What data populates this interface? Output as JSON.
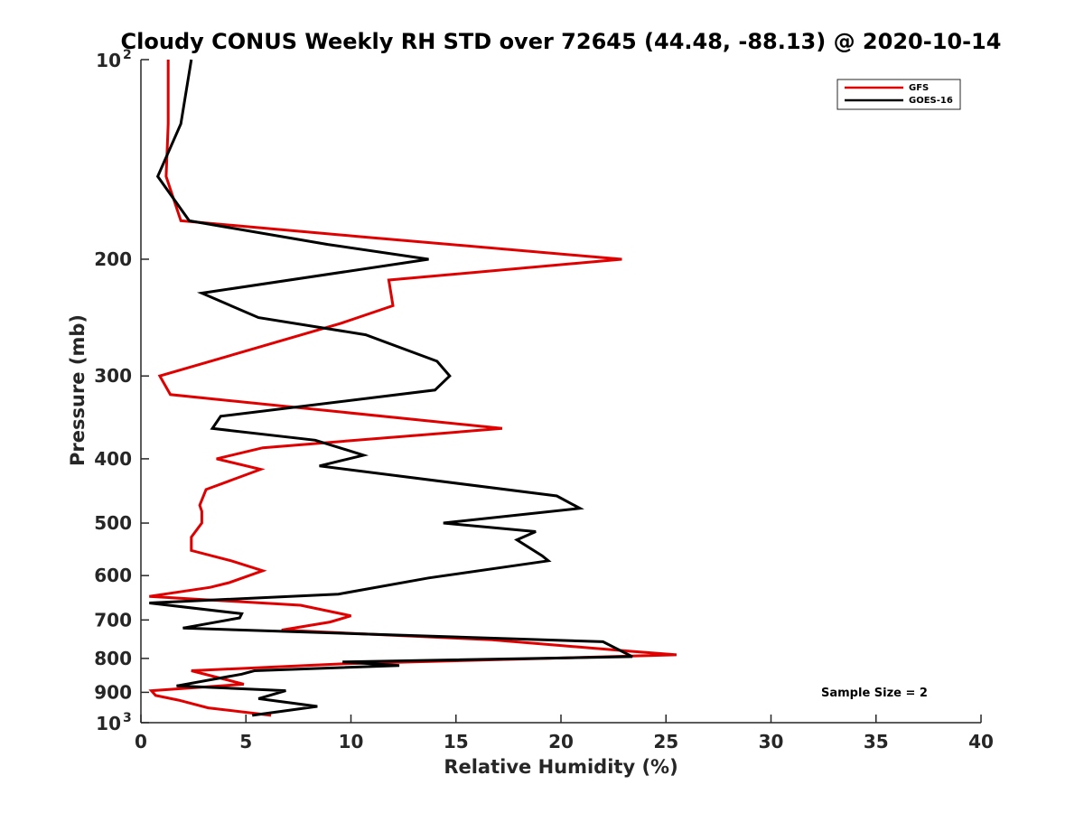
{
  "chart_data": {
    "type": "line",
    "title": "Cloudy CONUS Weekly RH STD over 72645 (44.48, -88.13) @ 2020-10-14",
    "xlabel": "Relative Humidity (%)",
    "ylabel": "Pressure (mb)",
    "xlim": [
      0,
      40
    ],
    "ylim": [
      100,
      1000
    ],
    "y_scale": "log",
    "y_reversed": true,
    "grid": false,
    "legend_position": "top-right",
    "x_ticks": [
      "0",
      "5",
      "10",
      "15",
      "20",
      "25",
      "30",
      "35",
      "40"
    ],
    "y_ticks": [
      {
        "value": 100,
        "base": "10",
        "exp": "2"
      },
      {
        "value": 200,
        "label": "200"
      },
      {
        "value": 300,
        "label": "300"
      },
      {
        "value": 400,
        "label": "400"
      },
      {
        "value": 500,
        "label": "500"
      },
      {
        "value": 600,
        "label": "600"
      },
      {
        "value": 700,
        "label": "700"
      },
      {
        "value": 800,
        "label": "800"
      },
      {
        "value": 900,
        "label": "900"
      },
      {
        "value": 1000,
        "base": "10",
        "exp": "3"
      }
    ],
    "annotation": "Sample Size = 2",
    "series": [
      {
        "name": "GFS",
        "color": "#e00000",
        "points": [
          [
            1.3,
            100
          ],
          [
            1.3,
            125
          ],
          [
            1.2,
            150
          ],
          [
            1.9,
            175
          ],
          [
            10.5,
            185
          ],
          [
            22.9,
            200
          ],
          [
            11.8,
            215
          ],
          [
            12.0,
            235
          ],
          [
            9.5,
            250
          ],
          [
            0.9,
            300
          ],
          [
            1.4,
            320
          ],
          [
            17.2,
            360
          ],
          [
            5.8,
            385
          ],
          [
            3.6,
            400
          ],
          [
            5.7,
            415
          ],
          [
            3.1,
            445
          ],
          [
            2.8,
            470
          ],
          [
            2.9,
            480
          ],
          [
            2.9,
            500
          ],
          [
            2.4,
            525
          ],
          [
            2.4,
            550
          ],
          [
            4.3,
            570
          ],
          [
            5.8,
            590
          ],
          [
            4.2,
            615
          ],
          [
            3.3,
            625
          ],
          [
            0.4,
            645
          ],
          [
            7.6,
            665
          ],
          [
            10.0,
            690
          ],
          [
            9.0,
            705
          ],
          [
            6.7,
            725
          ],
          [
            16.7,
            750
          ],
          [
            23.2,
            780
          ],
          [
            25.5,
            790
          ],
          [
            9.7,
            815
          ],
          [
            2.4,
            835
          ],
          [
            4.9,
            875
          ],
          [
            0.5,
            895
          ],
          [
            0.7,
            910
          ],
          [
            1.8,
            925
          ],
          [
            3.2,
            950
          ],
          [
            6.2,
            975
          ]
        ]
      },
      {
        "name": "GOES-16",
        "color": "#000000",
        "points": [
          [
            2.4,
            100
          ],
          [
            1.9,
            125
          ],
          [
            0.8,
            150
          ],
          [
            2.3,
            175
          ],
          [
            8.9,
            190
          ],
          [
            13.7,
            200
          ],
          [
            2.9,
            225
          ],
          [
            5.6,
            245
          ],
          [
            10.7,
            260
          ],
          [
            14.1,
            285
          ],
          [
            14.7,
            300
          ],
          [
            14.0,
            315
          ],
          [
            3.8,
            345
          ],
          [
            3.4,
            360
          ],
          [
            8.3,
            375
          ],
          [
            10.6,
            395
          ],
          [
            8.5,
            410
          ],
          [
            19.8,
            455
          ],
          [
            20.9,
            475
          ],
          [
            14.4,
            500
          ],
          [
            18.8,
            515
          ],
          [
            17.9,
            530
          ],
          [
            19.1,
            560
          ],
          [
            19.4,
            570
          ],
          [
            13.7,
            605
          ],
          [
            9.4,
            640
          ],
          [
            0.4,
            660
          ],
          [
            4.8,
            685
          ],
          [
            4.7,
            695
          ],
          [
            2.0,
            720
          ],
          [
            22.0,
            755
          ],
          [
            23.4,
            795
          ],
          [
            9.6,
            810
          ],
          [
            12.3,
            820
          ],
          [
            5.4,
            835
          ],
          [
            4.8,
            845
          ],
          [
            1.7,
            880
          ],
          [
            6.9,
            895
          ],
          [
            5.6,
            920
          ],
          [
            8.4,
            945
          ],
          [
            5.3,
            975
          ]
        ]
      }
    ]
  }
}
